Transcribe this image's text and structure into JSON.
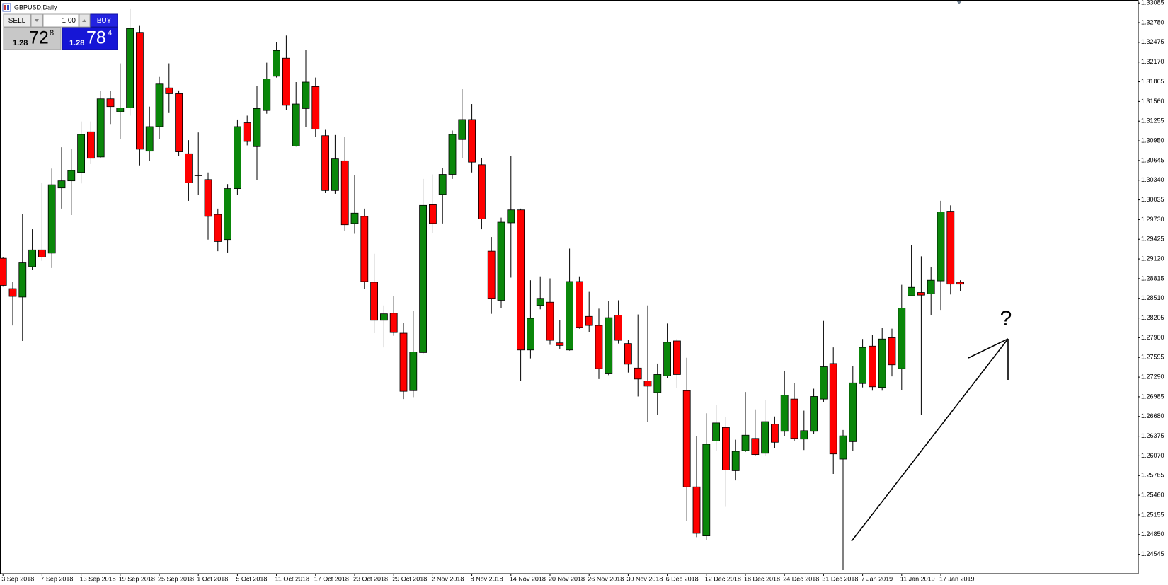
{
  "trade_panel": {
    "sell_label": "SELL",
    "lot_size": "1.00",
    "buy_label": "BUY",
    "sell_price": {
      "prefix": "1.28",
      "main": "72",
      "fraction": "8"
    },
    "buy_price": {
      "prefix": "1.28",
      "main": "78",
      "fraction": "4"
    }
  },
  "chart_data": {
    "type": "candlestick",
    "title": "GBPUSD,Daily",
    "annotation": "?",
    "up_color": "#0a870a",
    "down_color": "#ff0000",
    "grid": false,
    "categories": [
      "3 Sep 2018",
      null,
      null,
      null,
      "7 Sep 2018",
      null,
      null,
      null,
      "13 Sep 2018",
      null,
      null,
      null,
      "19 Sep 2018",
      null,
      null,
      null,
      "25 Sep 2018",
      null,
      null,
      null,
      "1 Oct 2018",
      null,
      null,
      null,
      "5 Oct 2018",
      null,
      null,
      null,
      "11 Oct 2018",
      null,
      null,
      null,
      "17 Oct 2018",
      null,
      null,
      null,
      "23 Oct 2018",
      null,
      null,
      null,
      "29 Oct 2018",
      null,
      null,
      null,
      "2 Nov 2018",
      null,
      null,
      null,
      "8 Nov 2018",
      null,
      null,
      null,
      "14 Nov 2018",
      null,
      null,
      null,
      "20 Nov 2018",
      null,
      null,
      null,
      "26 Nov 2018",
      null,
      null,
      null,
      "30 Nov 2018",
      null,
      null,
      null,
      "6 Dec 2018",
      null,
      null,
      null,
      "12 Dec 2018",
      null,
      null,
      null,
      "18 Dec 2018",
      null,
      null,
      null,
      "24 Dec 2018",
      null,
      null,
      null,
      "31 Dec 2018",
      null,
      null,
      null,
      "7 Jan 2019",
      null,
      null,
      null,
      "11 Jan 2019",
      null,
      null,
      null,
      "17 Jan 2019",
      null,
      null
    ],
    "open": [
      1.2913,
      1.2866,
      1.2853,
      1.29,
      1.2926,
      1.2921,
      1.3022,
      1.3033,
      1.3046,
      1.3109,
      1.307,
      1.316,
      1.314,
      1.3146,
      1.3263,
      1.3079,
      1.3117,
      1.3177,
      1.3168,
      1.3075,
      1.3042,
      1.3035,
      1.2981,
      1.2942,
      1.3021,
      1.3123,
      1.3086,
      1.3142,
      1.3195,
      1.3223,
      1.3087,
      1.3145,
      1.3179,
      1.3103,
      1.3018,
      1.3064,
      1.2967,
      1.2978,
      1.2876,
      1.2817,
      1.2828,
      1.2797,
      1.2708,
      1.2767,
      1.2996,
      1.3012,
      1.3043,
      1.3097,
      1.3128,
      1.3058,
      1.2924,
      1.2848,
      1.2968,
      1.2988,
      1.2771,
      1.284,
      1.2845,
      1.2782,
      1.2771,
      1.2877,
      1.2823,
      1.2809,
      1.2734,
      1.2825,
      1.2781,
      1.2743,
      1.2723,
      1.2705,
      1.2731,
      1.2785,
      1.2708,
      1.2559,
      1.2483,
      1.263,
      1.2651,
      1.2584,
      1.2615,
      1.2634,
      1.2611,
      1.2656,
      1.2645,
      1.2695,
      1.2633,
      1.2645,
      1.2695,
      1.275,
      1.2602,
      1.2629,
      1.2719,
      1.2777,
      1.2713,
      1.279,
      1.2742,
      1.2855,
      1.286,
      1.2858,
      1.2878,
      1.2986,
      1.2876
    ],
    "high": [
      1.2915,
      1.2877,
      1.2982,
      1.2958,
      1.303,
      1.3052,
      1.3085,
      1.3082,
      1.3125,
      1.3125,
      1.3172,
      1.3172,
      1.3215,
      1.3299,
      1.3273,
      1.3148,
      1.3194,
      1.3215,
      1.3173,
      1.3096,
      1.3108,
      1.3046,
      1.299,
      1.3028,
      1.3128,
      1.3134,
      1.318,
      1.3216,
      1.3248,
      1.3258,
      1.3186,
      1.3236,
      1.3193,
      1.3112,
      1.3104,
      1.3101,
      1.3042,
      1.299,
      1.292,
      1.284,
      1.2854,
      1.2813,
      1.2832,
      1.3036,
      1.3043,
      1.3053,
      1.3111,
      1.3175,
      1.3152,
      1.3068,
      1.2946,
      1.2976,
      1.3072,
      1.299,
      1.2879,
      1.2885,
      1.2882,
      1.2817,
      1.2928,
      1.2885,
      1.2861,
      1.2835,
      1.2847,
      1.2848,
      1.2787,
      1.2826,
      1.284,
      1.275,
      1.2812,
      1.2788,
      1.2759,
      1.2638,
      1.2673,
      1.2686,
      1.2667,
      1.2632,
      1.2706,
      1.2679,
      1.2693,
      1.2668,
      1.2739,
      1.272,
      1.2677,
      1.2711,
      1.2816,
      1.2775,
      1.2647,
      1.2746,
      1.2788,
      1.2794,
      1.2805,
      1.2804,
      1.2872,
      1.2933,
      1.2916,
      1.29,
      1.3002,
      1.2995,
      1.2879
    ],
    "low": [
      1.2869,
      1.2809,
      1.2785,
      1.2895,
      1.2909,
      1.2898,
      1.299,
      1.298,
      1.3029,
      1.3059,
      1.3068,
      1.312,
      1.3098,
      1.3134,
      1.3057,
      1.3064,
      1.3098,
      1.3138,
      1.3071,
      1.3002,
      1.3011,
      1.2942,
      1.2924,
      1.2922,
      1.3011,
      1.3088,
      1.3034,
      1.3137,
      1.3193,
      1.3143,
      1.3086,
      1.3117,
      1.3101,
      1.3014,
      1.3013,
      1.2955,
      1.2951,
      1.2865,
      1.2797,
      1.2775,
      1.2793,
      1.2695,
      1.2698,
      1.2764,
      1.2952,
      1.2967,
      1.3036,
      1.3068,
      1.3046,
      1.2958,
      1.2827,
      1.2836,
      1.2883,
      1.2723,
      1.2758,
      1.2834,
      1.2779,
      1.2772,
      1.277,
      1.2804,
      1.2799,
      1.2726,
      1.2732,
      1.2781,
      1.2736,
      1.2699,
      1.2659,
      1.267,
      1.2728,
      1.2712,
      1.2506,
      1.2481,
      1.2476,
      1.2614,
      1.2528,
      1.2569,
      1.2613,
      1.2607,
      1.2607,
      1.2619,
      1.2638,
      1.263,
      1.2616,
      1.2641,
      1.269,
      1.2579,
      1.243,
      1.2615,
      1.2713,
      1.2708,
      1.2708,
      1.273,
      1.2709,
      1.2854,
      1.267,
      1.2825,
      1.2833,
      1.2857,
      1.2862
    ],
    "close": [
      1.2871,
      1.2854,
      1.2906,
      1.2926,
      1.2915,
      1.3027,
      1.3033,
      1.3049,
      1.3105,
      1.3068,
      1.316,
      1.3148,
      1.3146,
      1.3269,
      1.3082,
      1.3117,
      1.3183,
      1.3168,
      1.3078,
      1.303,
      1.3041,
      1.2978,
      1.2939,
      1.3021,
      1.3117,
      1.3094,
      1.3145,
      1.3191,
      1.3235,
      1.315,
      1.3152,
      1.3186,
      1.3113,
      1.3018,
      1.3067,
      1.2965,
      1.2983,
      1.2877,
      1.2817,
      1.2827,
      1.2798,
      1.2707,
      1.2768,
      1.2995,
      1.2967,
      1.3043,
      1.3105,
      1.3128,
      1.3062,
      1.2974,
      1.2851,
      1.2969,
      1.2988,
      1.2771,
      1.282,
      1.2851,
      1.2786,
      1.2778,
      1.2877,
      1.2806,
      1.2809,
      1.2742,
      1.2821,
      1.2786,
      1.2749,
      1.2726,
      1.2715,
      1.2733,
      1.2783,
      1.2733,
      1.2559,
      1.2487,
      1.2625,
      1.2658,
      1.2585,
      1.2614,
      1.2639,
      1.2609,
      1.266,
      1.2628,
      1.2701,
      1.2634,
      1.2646,
      1.2699,
      1.2745,
      1.261,
      1.2638,
      1.272,
      1.2775,
      1.2714,
      1.2788,
      1.2748,
      1.2836,
      1.2868,
      1.2856,
      1.2879,
      1.2985,
      1.2873,
      1.2873
    ],
    "ylim": [
      1.24245,
      1.33131
    ],
    "yticks": [
      1.33085,
      {
        "value": 1.3278,
        "label": "1.32780"
      },
      1.32475,
      {
        "value": 1.3217,
        "label": "1.32170"
      },
      1.31865,
      {
        "value": 1.3156,
        "label": "1.31560"
      },
      1.31255,
      {
        "value": 1.3095,
        "label": "1.30950"
      },
      1.30645,
      {
        "value": 1.3034,
        "label": "1.30340"
      },
      1.30035,
      {
        "value": 1.2973,
        "label": "1.29730"
      },
      1.29425,
      {
        "value": 1.2912,
        "label": "1.29120"
      },
      1.28815,
      {
        "value": 1.2851,
        "label": "1.28510"
      },
      1.28205,
      {
        "value": 1.279,
        "label": "1.27900"
      },
      1.27595,
      {
        "value": 1.2729,
        "label": "1.27290"
      },
      1.26985,
      {
        "value": 1.2668,
        "label": "1.26680"
      },
      1.26375,
      {
        "value": 1.2607,
        "label": "1.26070"
      },
      1.25765,
      {
        "value": 1.2546,
        "label": "1.25460"
      },
      1.25155,
      {
        "value": 1.2485,
        "label": "1.24850"
      },
      1.24545
    ]
  }
}
